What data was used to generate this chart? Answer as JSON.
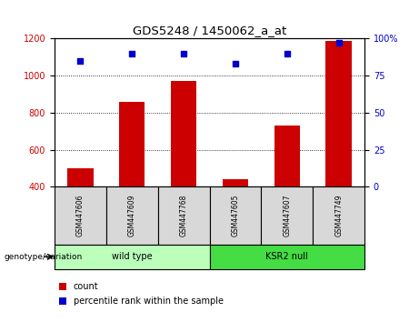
{
  "title": "GDS5248 / 1450062_a_at",
  "samples": [
    "GSM447606",
    "GSM447609",
    "GSM447768",
    "GSM447605",
    "GSM447607",
    "GSM447749"
  ],
  "counts": [
    500,
    860,
    970,
    440,
    730,
    1190
  ],
  "percentiles": [
    85,
    90,
    90,
    83,
    90,
    97
  ],
  "groups": [
    {
      "label": "wild type",
      "indices": [
        0,
        1,
        2
      ],
      "color": "#bbffbb"
    },
    {
      "label": "KSR2 null",
      "indices": [
        3,
        4,
        5
      ],
      "color": "#44dd44"
    }
  ],
  "bar_color": "#cc0000",
  "dot_color": "#0000cc",
  "left_ylim": [
    400,
    1200
  ],
  "left_yticks": [
    400,
    600,
    800,
    1000,
    1200
  ],
  "right_ylim": [
    0,
    100
  ],
  "right_yticks": [
    0,
    25,
    50,
    75,
    100
  ],
  "right_tick_labels": [
    "0",
    "25",
    "50",
    "75",
    "100%"
  ],
  "grid_values": [
    600,
    800,
    1000
  ],
  "sample_box_color": "#d8d8d8",
  "plot_bg": "#ffffff",
  "label_count": "count",
  "label_percentile": "percentile rank within the sample",
  "genotype_label": "genotype/variation"
}
